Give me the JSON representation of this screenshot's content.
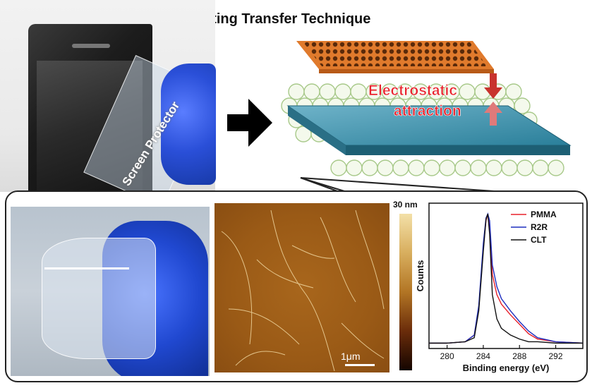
{
  "title": "Clean-Lifting Transfer Technique",
  "photo_label": "Screen Protector",
  "schematic_label_line1": "Electrostatic",
  "schematic_label_line2": "attraction",
  "afm_scale_label": "1μm",
  "colorbar_label": "30 nm",
  "colors": {
    "pmma": "#e8202a",
    "r2r": "#1f2fbf",
    "clt": "#111111",
    "glove": "#2a4fd8",
    "afm": "#9a5a16",
    "film": "#e07a2c",
    "substrate": "#2a7f9a"
  },
  "chart_data": {
    "type": "line",
    "title": "",
    "xlabel": "Binding energy (eV)",
    "ylabel": "Counts",
    "xlim": [
      278,
      295
    ],
    "x_ticks": [
      280,
      284,
      288,
      292
    ],
    "x_tick_labels": [
      "280",
      "284",
      "288",
      "292"
    ],
    "legend": [
      "PMMA",
      "R2R",
      "CLT"
    ],
    "legend_position": "top-right",
    "x": [
      278,
      280,
      282,
      283,
      283.5,
      284,
      284.3,
      284.5,
      284.7,
      285,
      285.5,
      286,
      287,
      288,
      289,
      290,
      292,
      295
    ],
    "series": [
      {
        "name": "PMMA",
        "values": [
          0.04,
          0.04,
          0.05,
          0.1,
          0.3,
          0.75,
          0.95,
          1.0,
          0.92,
          0.55,
          0.4,
          0.33,
          0.25,
          0.18,
          0.11,
          0.07,
          0.05,
          0.04
        ]
      },
      {
        "name": "R2R",
        "values": [
          0.04,
          0.04,
          0.05,
          0.1,
          0.32,
          0.78,
          0.97,
          1.0,
          0.95,
          0.62,
          0.46,
          0.37,
          0.28,
          0.2,
          0.13,
          0.08,
          0.05,
          0.04
        ]
      },
      {
        "name": "CLT",
        "values": [
          0.04,
          0.04,
          0.05,
          0.08,
          0.28,
          0.72,
          0.96,
          1.0,
          0.85,
          0.4,
          0.22,
          0.15,
          0.1,
          0.07,
          0.05,
          0.05,
          0.04,
          0.04
        ]
      }
    ]
  }
}
